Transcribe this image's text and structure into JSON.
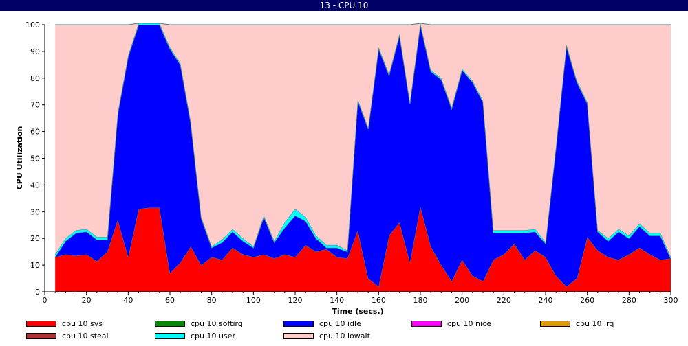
{
  "window": {
    "title": "13 - CPU 10"
  },
  "chart_data": {
    "type": "area",
    "stacked": true,
    "xlabel": "Time (secs.)",
    "ylabel": "CPU Utilization",
    "xlim": [
      0,
      300
    ],
    "ylim": [
      0,
      100
    ],
    "xticks": [
      0,
      20,
      40,
      60,
      80,
      100,
      120,
      140,
      160,
      180,
      200,
      220,
      240,
      260,
      280,
      300
    ],
    "yticks": [
      0,
      10,
      20,
      30,
      40,
      50,
      60,
      70,
      80,
      90,
      100
    ],
    "x": [
      5,
      10,
      15,
      20,
      25,
      30,
      35,
      40,
      45,
      50,
      55,
      60,
      65,
      70,
      75,
      80,
      85,
      90,
      95,
      100,
      105,
      110,
      115,
      120,
      125,
      130,
      135,
      140,
      145,
      150,
      155,
      160,
      165,
      170,
      175,
      180,
      185,
      190,
      195,
      200,
      205,
      210,
      215,
      220,
      225,
      230,
      235,
      240,
      245,
      250,
      255,
      260,
      265,
      270,
      275,
      280,
      285,
      290,
      295,
      300
    ],
    "series": [
      {
        "name": "cpu 10 sys",
        "color": "#ff0000",
        "values": [
          13,
          14,
          13.5,
          14,
          11.5,
          15,
          27,
          13,
          31,
          31.5,
          31.5,
          7,
          11,
          17,
          10,
          13,
          12,
          16.5,
          14,
          13,
          14,
          12.5,
          14,
          13,
          17.5,
          15,
          16,
          13,
          12.5,
          23,
          5,
          2,
          21,
          26,
          11,
          32,
          17,
          10,
          4,
          12,
          6,
          4,
          12,
          14,
          18,
          12,
          15.5,
          13,
          6,
          2,
          5,
          20.5,
          15.5,
          13,
          12,
          14,
          16.5,
          14,
          12,
          12.5
        ]
      },
      {
        "name": "cpu 10 softirq",
        "color": "#008800",
        "values": [
          0,
          0,
          0,
          0,
          0,
          0,
          0,
          0,
          0,
          0,
          0,
          0,
          0,
          0,
          0,
          0,
          0,
          0,
          0,
          0,
          0,
          0,
          0,
          0,
          0,
          0,
          0,
          0,
          0,
          0,
          0,
          0,
          0,
          0,
          0,
          0,
          0,
          0,
          0,
          0,
          0,
          0,
          0,
          0,
          0,
          0,
          0,
          0,
          0,
          0,
          0,
          0,
          0,
          0,
          0,
          0,
          0,
          0,
          0,
          0
        ]
      },
      {
        "name": "cpu 10 idle",
        "color": "#0000ff",
        "values": [
          0,
          5,
          8.5,
          8.5,
          8,
          4.5,
          39.5,
          75,
          69,
          68.5,
          68.5,
          84,
          74,
          46,
          17.5,
          3.5,
          6.5,
          6,
          5,
          3.5,
          14,
          6,
          10,
          15.5,
          9,
          5,
          0.5,
          3.5,
          2.5,
          48.5,
          56,
          89,
          60,
          70,
          59.5,
          68,
          65.5,
          69.5,
          64.5,
          71,
          72.5,
          67,
          10,
          8,
          4,
          10,
          7,
          5,
          48,
          90,
          73.5,
          50,
          7,
          6,
          10.5,
          6,
          8,
          7,
          9,
          0
        ]
      },
      {
        "name": "cpu 10 nice",
        "color": "#ff00ff",
        "values": [
          0,
          0,
          0,
          0,
          0,
          0,
          0,
          0,
          0,
          0,
          0,
          0,
          0,
          0,
          0,
          0,
          0,
          0,
          0,
          0,
          0,
          0,
          0,
          0,
          0,
          0,
          0,
          0,
          0,
          0,
          0,
          0,
          0,
          0,
          0,
          0,
          0,
          0,
          0,
          0,
          0,
          0,
          0,
          0,
          0,
          0,
          0,
          0,
          0,
          0,
          0,
          0,
          0,
          0,
          0,
          0,
          0,
          0,
          0,
          0
        ]
      },
      {
        "name": "cpu 10 irq",
        "color": "#dd9900",
        "values": [
          0,
          0,
          0,
          0,
          0,
          0,
          0,
          0,
          0,
          0,
          0,
          0,
          0,
          0,
          0,
          0,
          0,
          0,
          0,
          0,
          0,
          0,
          0,
          0,
          0,
          0,
          0,
          0,
          0,
          0,
          0,
          0,
          0,
          0,
          0,
          0,
          0,
          0,
          0,
          0,
          0,
          0,
          0,
          0,
          0,
          0,
          0,
          0,
          0,
          0,
          0,
          0,
          0,
          0,
          0,
          0,
          0,
          0,
          0,
          0
        ]
      },
      {
        "name": "cpu 10 steal",
        "color": "#aa3333",
        "values": [
          0,
          0,
          0,
          0,
          0,
          0,
          0,
          0,
          0,
          0,
          0,
          0,
          0,
          0,
          0,
          0,
          0,
          0,
          0,
          0,
          0,
          0,
          0,
          0,
          0,
          0,
          0,
          0,
          0,
          0,
          0,
          0,
          0,
          0,
          0,
          0,
          0,
          0,
          0,
          0,
          0,
          0,
          0,
          0,
          0,
          0,
          0,
          0,
          0,
          0,
          0,
          0,
          0,
          0,
          0,
          0,
          0,
          0,
          0,
          0
        ]
      },
      {
        "name": "cpu 10 user",
        "color": "#00ffff",
        "values": [
          1,
          1,
          1,
          1,
          1,
          1,
          0.5,
          0.5,
          0.5,
          0.5,
          0.5,
          0.5,
          0.5,
          0.5,
          0.5,
          0.5,
          1,
          1,
          1,
          0.5,
          0.5,
          0.5,
          2,
          2.5,
          1.5,
          1,
          1,
          1,
          0.5,
          0.5,
          0.5,
          0.5,
          0.5,
          0.5,
          0.5,
          0.5,
          0.5,
          0.5,
          0.5,
          0.5,
          0.5,
          0.5,
          1,
          1,
          1,
          1,
          1,
          0.5,
          0.5,
          0.5,
          0.5,
          0.5,
          0.5,
          1,
          1,
          1,
          1,
          1,
          1,
          0.5
        ]
      },
      {
        "name": "cpu 10 iowait",
        "color": "#ffcccc",
        "values": [
          86,
          80,
          77,
          76.5,
          79.5,
          79.5,
          33,
          11.5,
          0,
          0,
          0,
          8.5,
          14.5,
          36.5,
          72,
          83,
          80.5,
          76.5,
          80,
          83,
          71.5,
          81,
          74,
          69,
          72,
          79,
          82.5,
          82.5,
          84.5,
          28,
          38.5,
          8.5,
          18.5,
          3.5,
          29,
          0,
          17,
          20,
          31,
          16.5,
          21,
          28.5,
          77,
          77,
          77,
          77,
          76.5,
          81.5,
          45.5,
          7.5,
          21,
          29,
          77,
          80,
          76.5,
          79,
          74.5,
          78,
          78,
          87
        ]
      }
    ],
    "legend": {
      "position": "bottom",
      "items": [
        {
          "label": "cpu 10 sys",
          "color": "#ff0000"
        },
        {
          "label": "cpu 10 softirq",
          "color": "#008800"
        },
        {
          "label": "cpu 10 idle",
          "color": "#0000ff"
        },
        {
          "label": "cpu 10 nice",
          "color": "#ff00ff"
        },
        {
          "label": "cpu 10 irq",
          "color": "#dd9900"
        },
        {
          "label": "cpu 10 steal",
          "color": "#aa3333"
        },
        {
          "label": "cpu 10 user",
          "color": "#00ffff"
        },
        {
          "label": "cpu 10 iowait",
          "color": "#ffcccc"
        }
      ]
    }
  }
}
